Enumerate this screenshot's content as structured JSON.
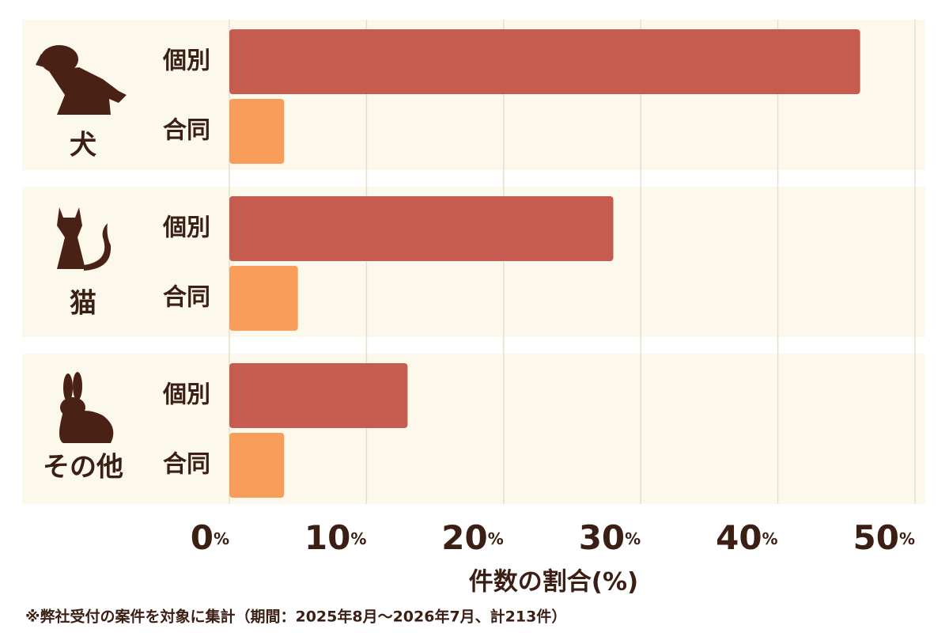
{
  "chart_data": {
    "type": "bar",
    "orientation": "horizontal",
    "categories": [
      "犬",
      "猫",
      "その他"
    ],
    "series": [
      {
        "name": "個別",
        "color": "#c65b4f",
        "values": [
          46,
          28,
          13
        ]
      },
      {
        "name": "合同",
        "color": "#f89e5a",
        "values": [
          4,
          5,
          4
        ]
      }
    ],
    "xlim": [
      0,
      50
    ],
    "xticks": [
      {
        "value": 0,
        "label": "0%"
      },
      {
        "value": 10,
        "label": "10%"
      },
      {
        "value": 20,
        "label": "20%"
      },
      {
        "value": 30,
        "label": "30%"
      },
      {
        "value": 40,
        "label": "40%"
      },
      {
        "value": 50,
        "label": "50%"
      }
    ],
    "grid": true,
    "xlabel": "件数の割合(%)",
    "note": "※弊社受付の案件を対象に集計（期間：2025年8月〜2026年7月、計213件）"
  }
}
